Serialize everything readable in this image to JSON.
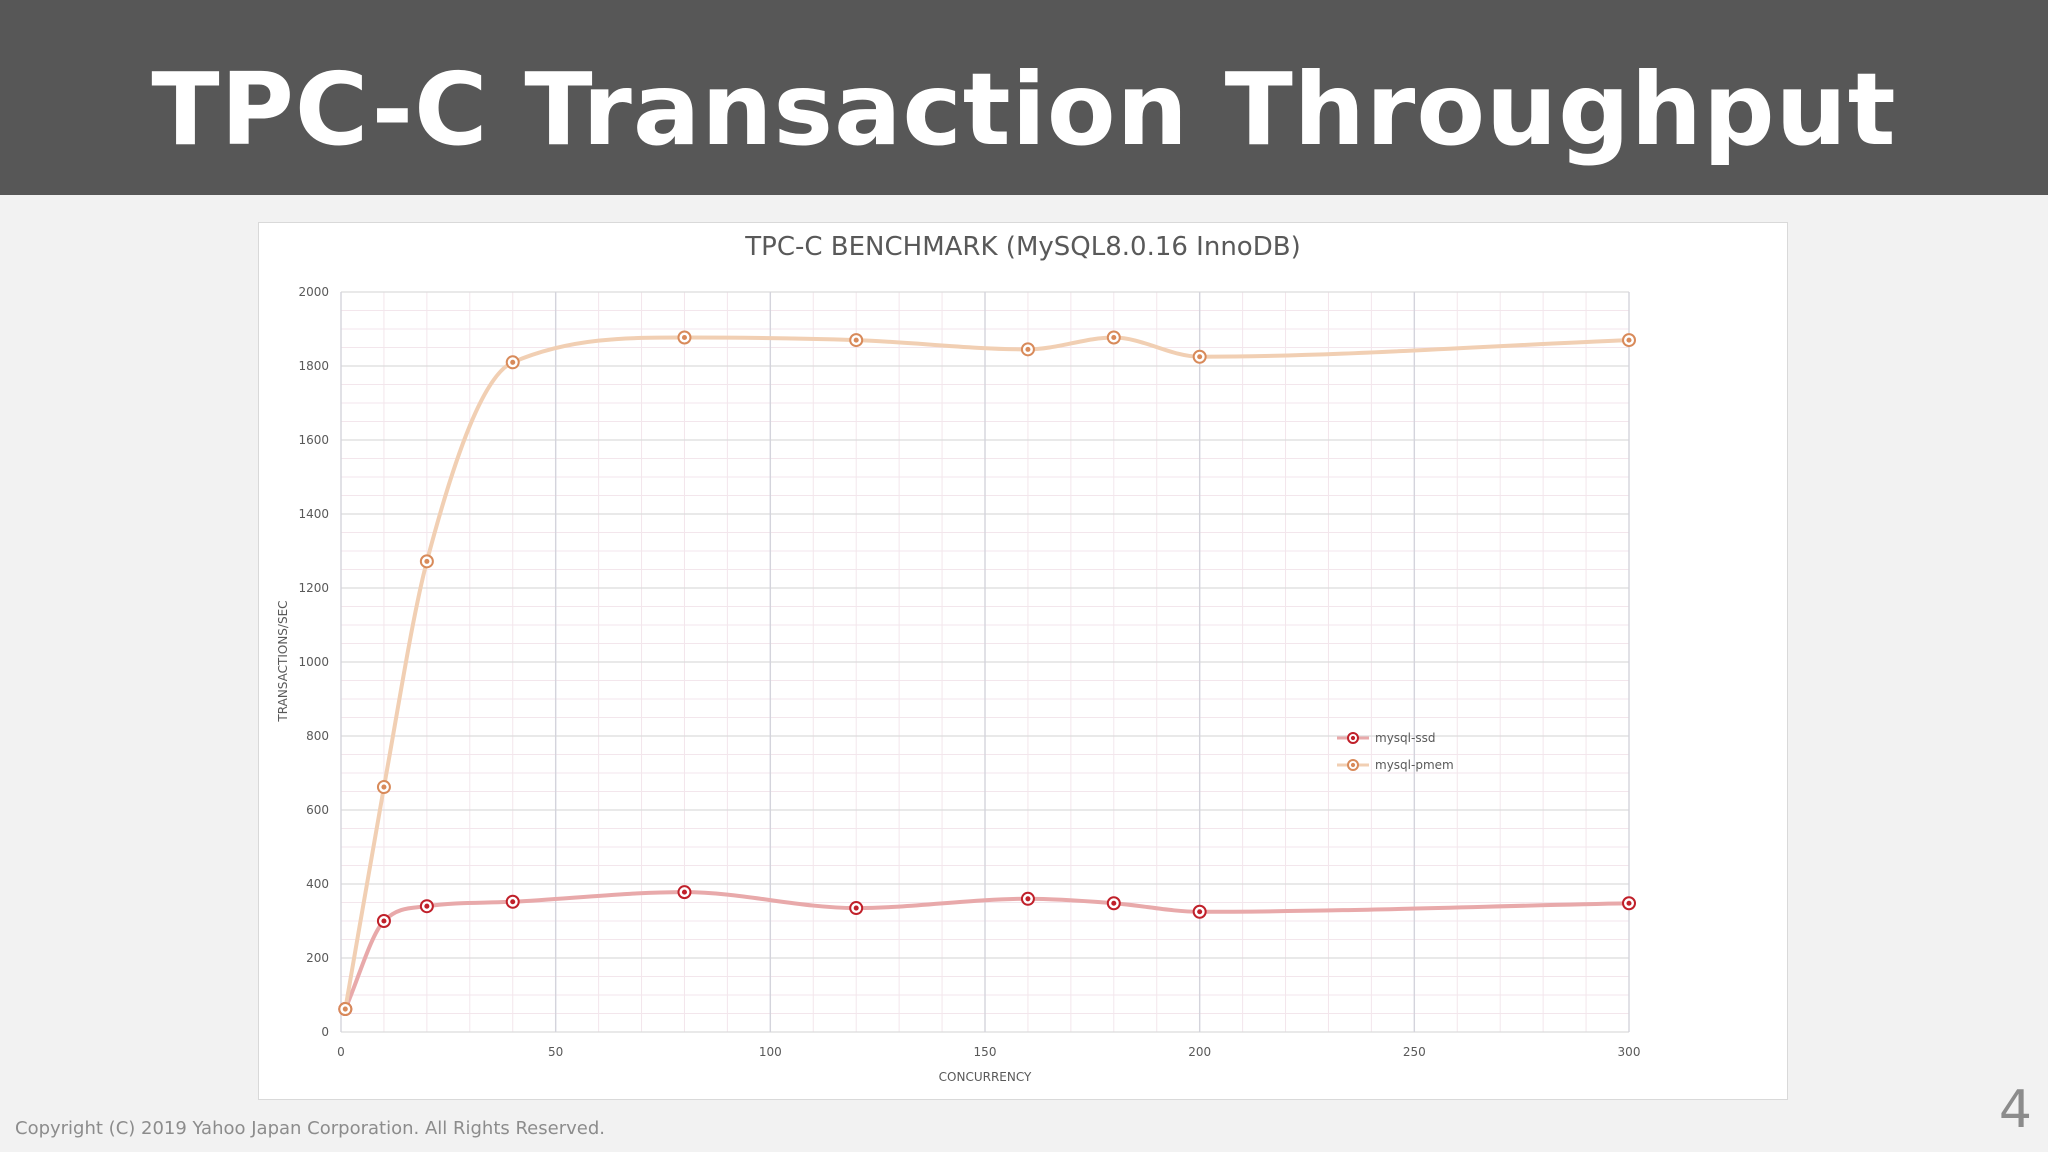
{
  "slide": {
    "title": "TPC-C Transaction Throughput",
    "footer": "Copyright (C) 2019 Yahoo Japan Corporation. All Rights Reserved.",
    "page_number": "4"
  },
  "chart_data": {
    "type": "line",
    "title": "TPC-C BENCHMARK (MySQL8.0.16 InnoDB)",
    "xlabel": "CONCURRENCY",
    "ylabel": "TRANSACTIONS/SEC",
    "xlim": [
      0,
      300
    ],
    "ylim": [
      0,
      2000
    ],
    "xticks": [
      0,
      50,
      100,
      150,
      200,
      250,
      300
    ],
    "yticks": [
      0,
      200,
      400,
      600,
      800,
      1000,
      1200,
      1400,
      1600,
      1800,
      2000
    ],
    "grid": true,
    "legend_position": "right",
    "series": [
      {
        "name": "mysql-ssd",
        "color": "#c0202a",
        "line_color": "#e8a9aa",
        "x": [
          1,
          10,
          20,
          40,
          80,
          120,
          160,
          180,
          200,
          300
        ],
        "y": [
          62,
          300,
          340,
          352,
          378,
          335,
          360,
          348,
          325,
          348
        ]
      },
      {
        "name": "mysql-pmem",
        "color": "#d88a5a",
        "line_color": "#f1cfb3",
        "x": [
          1,
          10,
          20,
          40,
          80,
          120,
          160,
          180,
          200,
          300
        ],
        "y": [
          62,
          662,
          1272,
          1810,
          1877,
          1870,
          1845,
          1877,
          1825,
          1870
        ]
      }
    ]
  }
}
